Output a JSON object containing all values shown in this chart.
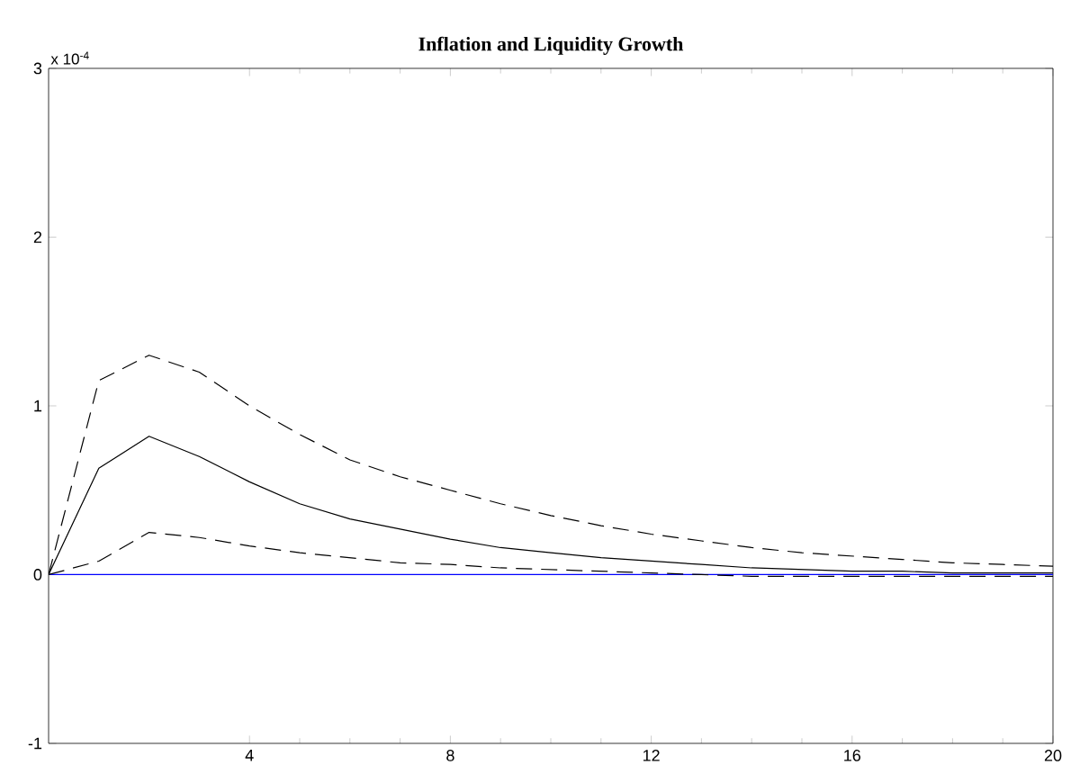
{
  "chart_data": {
    "type": "line",
    "title": "Inflation and Liquidity Growth",
    "x": [
      0,
      1,
      2,
      3,
      4,
      5,
      6,
      7,
      8,
      9,
      10,
      11,
      12,
      13,
      14,
      15,
      16,
      17,
      18,
      19,
      20
    ],
    "series": [
      {
        "color": "#000000",
        "line_style": "dashed",
        "values": [
          0,
          1.15,
          1.3,
          1.2,
          1.0,
          0.83,
          0.68,
          0.58,
          0.5,
          0.42,
          0.35,
          0.29,
          0.24,
          0.2,
          0.16,
          0.13,
          0.11,
          0.09,
          0.07,
          0.06,
          0.05
        ]
      },
      {
        "color": "#000000",
        "line_style": "solid",
        "values": [
          0,
          0.63,
          0.82,
          0.7,
          0.55,
          0.42,
          0.33,
          0.27,
          0.21,
          0.16,
          0.13,
          0.1,
          0.08,
          0.06,
          0.04,
          0.03,
          0.02,
          0.02,
          0.01,
          0.01,
          0.01
        ]
      },
      {
        "color": "#000000",
        "line_style": "dashed",
        "values": [
          0,
          0.08,
          0.25,
          0.22,
          0.17,
          0.13,
          0.1,
          0.07,
          0.06,
          0.04,
          0.03,
          0.02,
          0.01,
          0,
          -0.01,
          -0.01,
          -0.01,
          -0.01,
          -0.01,
          -0.01,
          -0.01
        ]
      }
    ],
    "xlim": [
      0,
      20
    ],
    "xticks": [
      4,
      8,
      12,
      16,
      20
    ],
    "ylim": [
      -1,
      3
    ],
    "yticks": [
      -1,
      0,
      1,
      2,
      3
    ],
    "ref_lines": [
      {
        "axis": "y",
        "value": 0,
        "color": "#0000ff"
      }
    ],
    "annotations": [
      "x 10$^{-4}$"
    ]
  }
}
